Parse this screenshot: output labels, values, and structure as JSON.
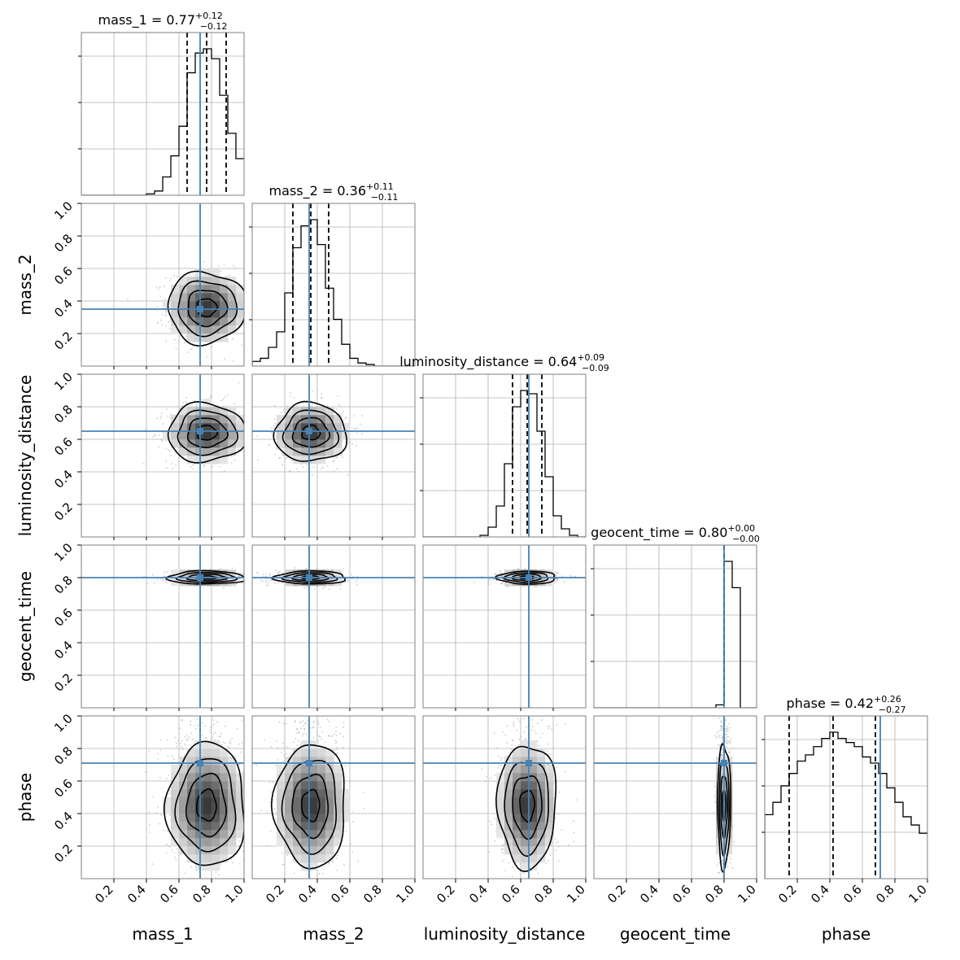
{
  "colors": {
    "truth": "#4682b4",
    "hist": "#000000",
    "grid": "#b0b0b0",
    "contour": "#000000",
    "scatter": "#9a9a9a"
  },
  "chart_data": {
    "type": "corner",
    "parameters": [
      "mass_1",
      "mass_2",
      "luminosity_distance",
      "geocent_time",
      "phase"
    ],
    "axis_range": [
      0,
      1
    ],
    "tick_values": [
      0.2,
      0.4,
      0.6,
      0.8,
      1.0
    ],
    "tick_labels": [
      "0.2",
      "0.4",
      "0.6",
      "0.8",
      "1.0"
    ],
    "grid": true,
    "truths": [
      0.73,
      0.35,
      0.65,
      0.8,
      0.71
    ],
    "titles": [
      {
        "text": "mass_1 = 0.77",
        "sup": "+0.12",
        "sub": "−0.12"
      },
      {
        "text": "mass_2 = 0.36",
        "sup": "+0.11",
        "sub": "−0.11"
      },
      {
        "text": "luminosity_distance = 0.64",
        "sup": "+0.09",
        "sub": "−0.09"
      },
      {
        "text": "geocent_time = 0.80",
        "sup": "+0.00",
        "sub": "−0.00"
      },
      {
        "text": "phase = 0.42",
        "sup": "+0.26",
        "sub": "−0.27"
      }
    ],
    "quantiles": [
      [
        0.65,
        0.77,
        0.89
      ],
      [
        0.25,
        0.36,
        0.47
      ],
      [
        0.55,
        0.64,
        0.73
      ],
      [
        0.8,
        0.8,
        0.8
      ],
      [
        0.15,
        0.42,
        0.68
      ]
    ],
    "histograms": [
      {
        "bin_start": 0.0,
        "bin_width": 0.05,
        "counts": [
          0,
          0,
          0,
          0,
          0,
          0,
          0,
          0,
          0.01,
          0.03,
          0.13,
          0.28,
          0.49,
          0.87,
          1.01,
          1.04,
          0.97,
          0.71,
          0.44,
          0.26
        ]
      },
      {
        "bin_start": 0.0,
        "bin_width": 0.05,
        "counts": [
          0.03,
          0.05,
          0.12,
          0.22,
          0.47,
          0.76,
          0.9,
          0.94,
          0.78,
          0.5,
          0.3,
          0.14,
          0.05,
          0.02,
          0.01,
          0,
          0,
          0,
          0,
          0
        ]
      },
      {
        "bin_start": 0.0,
        "bin_width": 0.05,
        "counts": [
          0,
          0,
          0,
          0,
          0,
          0,
          0,
          0.01,
          0.06,
          0.19,
          0.45,
          0.8,
          0.9,
          0.88,
          0.65,
          0.37,
          0.13,
          0.05,
          0.01,
          0
        ]
      },
      {
        "bin_start": 0.0,
        "bin_width": 0.05,
        "counts": [
          0,
          0,
          0,
          0,
          0,
          0,
          0,
          0,
          0,
          0,
          0,
          0,
          0,
          0,
          0,
          0.02,
          1.0,
          0.82,
          0,
          0
        ]
      },
      {
        "bin_start": 0.0,
        "bin_width": 0.05,
        "counts": [
          0.31,
          0.37,
          0.45,
          0.51,
          0.57,
          0.6,
          0.64,
          0.68,
          0.71,
          0.68,
          0.66,
          0.64,
          0.59,
          0.56,
          0.51,
          0.44,
          0.37,
          0.3,
          0.26,
          0.22
        ]
      }
    ],
    "joint_distributions": [
      {
        "row": 1,
        "col": 0,
        "mean": [
          0.77,
          0.36
        ],
        "sd": [
          0.12,
          0.11
        ]
      },
      {
        "row": 2,
        "col": 0,
        "mean": [
          0.77,
          0.64
        ],
        "sd": [
          0.12,
          0.09
        ]
      },
      {
        "row": 2,
        "col": 1,
        "mean": [
          0.36,
          0.64
        ],
        "sd": [
          0.11,
          0.09
        ]
      },
      {
        "row": 3,
        "col": 0,
        "mean": [
          0.77,
          0.8
        ],
        "sd": [
          0.12,
          0.02
        ]
      },
      {
        "row": 3,
        "col": 1,
        "mean": [
          0.36,
          0.8
        ],
        "sd": [
          0.11,
          0.02
        ]
      },
      {
        "row": 3,
        "col": 2,
        "mean": [
          0.64,
          0.8
        ],
        "sd": [
          0.09,
          0.02
        ]
      },
      {
        "row": 4,
        "col": 0,
        "mean": [
          0.77,
          0.45
        ],
        "sd": [
          0.12,
          0.19
        ]
      },
      {
        "row": 4,
        "col": 1,
        "mean": [
          0.36,
          0.45
        ],
        "sd": [
          0.11,
          0.19
        ]
      },
      {
        "row": 4,
        "col": 2,
        "mean": [
          0.64,
          0.45
        ],
        "sd": [
          0.09,
          0.19
        ]
      },
      {
        "row": 4,
        "col": 3,
        "mean": [
          0.8,
          0.45
        ],
        "sd": [
          0.02,
          0.19
        ]
      }
    ]
  }
}
